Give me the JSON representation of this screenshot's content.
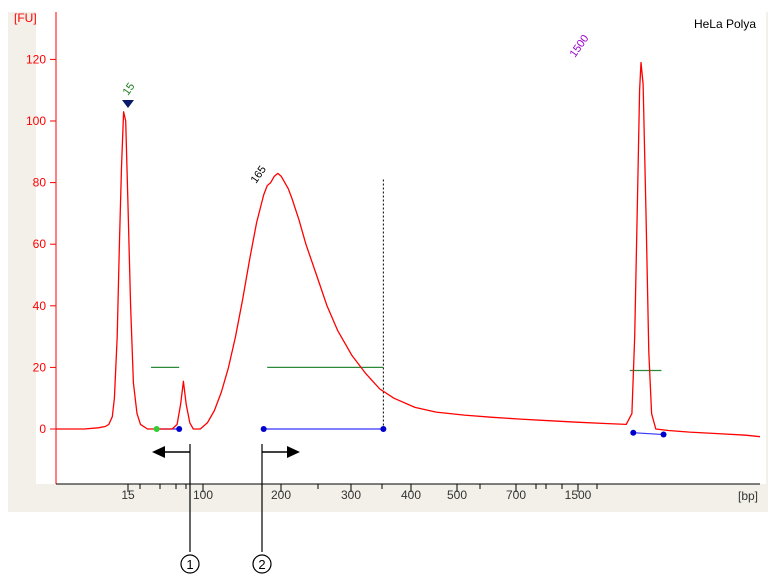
{
  "chart_data": {
    "type": "line",
    "title": "HeLa Polya",
    "ylabel": "[FU]",
    "xlabel": "[bp]",
    "ylim": [
      -20,
      130
    ],
    "yticks": [
      0,
      20,
      40,
      60,
      80,
      100,
      120
    ],
    "xticks": [
      "15",
      "100",
      "200",
      "300",
      "400",
      "500",
      "700",
      "1500"
    ],
    "peaks": [
      {
        "label": "15",
        "color": "#1a7a1a",
        "marker": "triangle"
      },
      {
        "label": "165",
        "color": "#000000"
      },
      {
        "label": "1500",
        "color": "#9900cc"
      }
    ],
    "series": [
      {
        "color": "#ff0000",
        "points": [
          [
            0,
            0
          ],
          [
            2,
            0
          ],
          [
            4,
            0
          ],
          [
            6,
            0.4
          ],
          [
            7,
            0.8
          ],
          [
            7.5,
            1.5
          ],
          [
            8,
            4
          ],
          [
            8.3,
            10
          ],
          [
            8.7,
            30
          ],
          [
            9.0,
            60
          ],
          [
            9.3,
            85
          ],
          [
            9.6,
            103
          ],
          [
            9.9,
            100
          ],
          [
            10.2,
            75
          ],
          [
            10.6,
            40
          ],
          [
            11,
            15
          ],
          [
            11.5,
            5
          ],
          [
            12,
            1.5
          ],
          [
            13,
            0
          ],
          [
            14,
            0
          ],
          [
            15.5,
            0
          ],
          [
            16.5,
            0
          ],
          [
            17.2,
            1.5
          ],
          [
            17.7,
            8
          ],
          [
            18.1,
            15.5
          ],
          [
            18.5,
            8
          ],
          [
            19,
            2
          ],
          [
            19.5,
            0
          ],
          [
            20.5,
            0
          ],
          [
            21.5,
            2
          ],
          [
            22.5,
            6
          ],
          [
            23.5,
            12
          ],
          [
            24.5,
            20
          ],
          [
            25.5,
            30
          ],
          [
            26.5,
            42
          ],
          [
            27.5,
            55
          ],
          [
            28.5,
            67
          ],
          [
            29.5,
            76
          ],
          [
            30,
            79
          ],
          [
            30.5,
            80
          ],
          [
            31,
            82
          ],
          [
            31.5,
            83
          ],
          [
            32,
            82
          ],
          [
            32.5,
            80
          ],
          [
            33,
            78
          ],
          [
            33.5,
            75
          ],
          [
            34.5,
            68
          ],
          [
            35.5,
            60
          ],
          [
            37,
            50
          ],
          [
            38.5,
            40
          ],
          [
            40,
            32
          ],
          [
            42,
            24
          ],
          [
            44,
            18
          ],
          [
            46,
            13
          ],
          [
            48,
            10
          ],
          [
            51,
            7
          ],
          [
            54,
            5.5
          ],
          [
            58,
            4.5
          ],
          [
            62,
            3.8
          ],
          [
            66,
            3.2
          ],
          [
            70,
            2.7
          ],
          [
            74,
            2.2
          ],
          [
            78,
            1.8
          ],
          [
            81,
            1.5
          ],
          [
            81.8,
            5
          ],
          [
            82.2,
            30
          ],
          [
            82.6,
            75
          ],
          [
            82.9,
            110
          ],
          [
            83.1,
            119
          ],
          [
            83.4,
            112
          ],
          [
            83.8,
            70
          ],
          [
            84.2,
            25
          ],
          [
            84.6,
            5
          ],
          [
            85.2,
            0
          ],
          [
            87,
            -0.5
          ],
          [
            90,
            -1
          ],
          [
            94,
            -1.5
          ],
          [
            98,
            -2
          ],
          [
            100,
            -2.5
          ]
        ]
      }
    ],
    "baseline_markers": {
      "green_dots": [
        [
          14.3,
          0
        ]
      ],
      "blue_dots": [
        [
          17.5,
          0
        ],
        [
          29.5,
          0
        ],
        [
          46.5,
          0
        ],
        [
          82.0,
          -1.2
        ],
        [
          86.3,
          -1.8
        ]
      ]
    },
    "ladder_width_lines": [
      {
        "x": [
          13.5,
          17.5
        ],
        "y": 20
      },
      {
        "x": [
          30,
          46.5
        ],
        "y": 20
      },
      {
        "x": [
          81.5,
          86
        ],
        "y": 19
      }
    ],
    "callouts": [
      "1",
      "2"
    ]
  }
}
